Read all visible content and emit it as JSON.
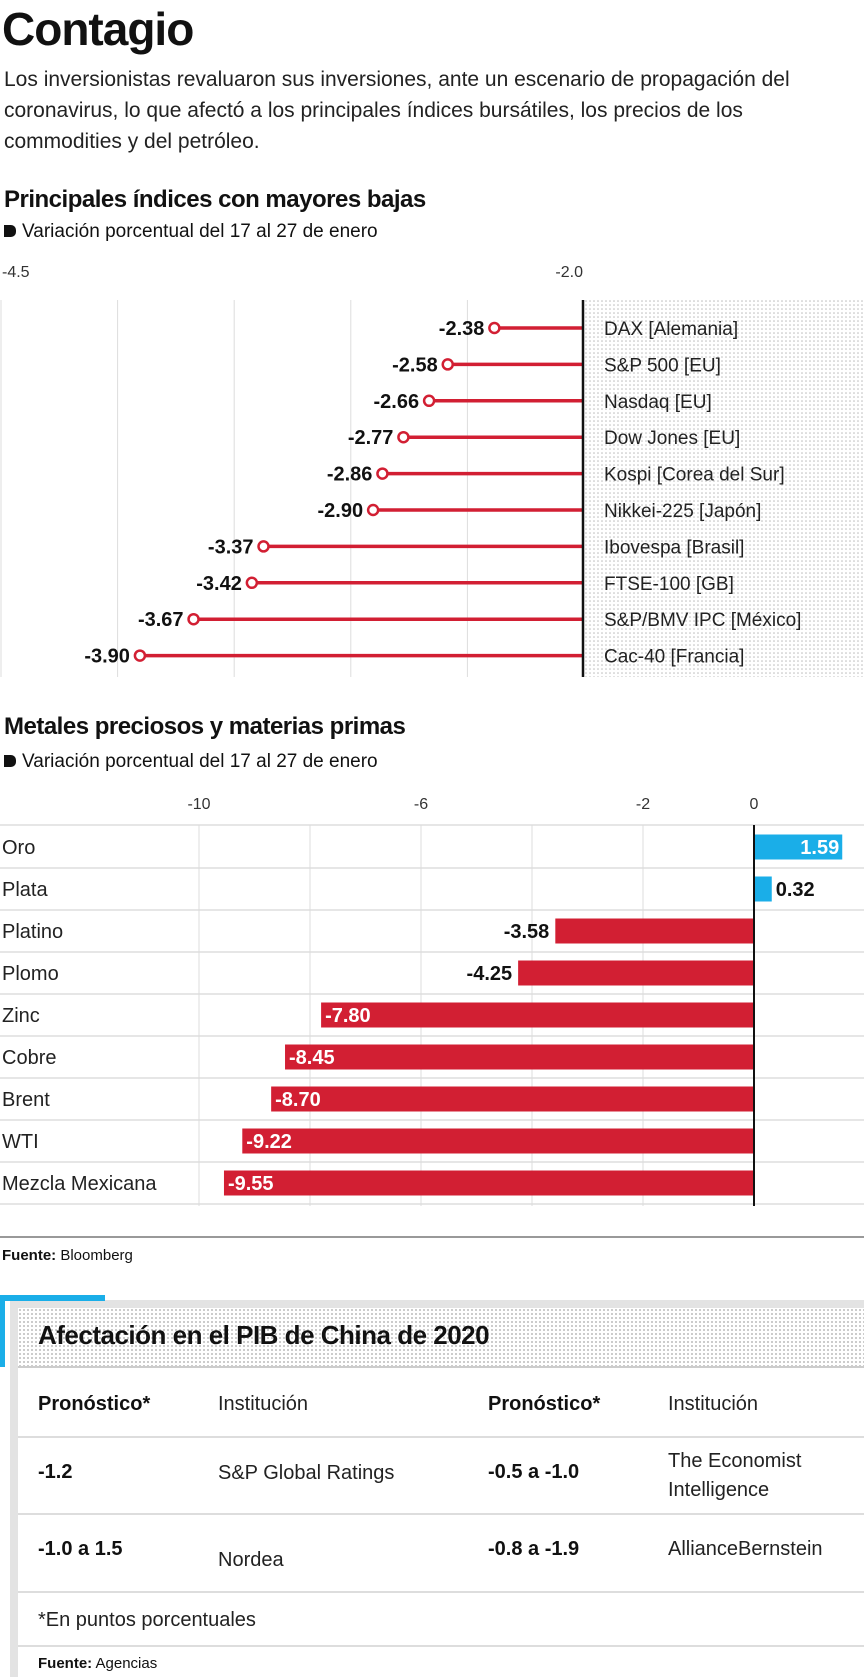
{
  "header": {
    "title": "Contagio",
    "lead": "Los inversionistas revaluaron sus inversiones, ante un escenario de propagación del coronavirus, lo que afectó a los principales índices bursátiles, los precios de los commodities y del petróleo."
  },
  "chart_data": [
    {
      "type": "lollipop",
      "title": "Principales índices con mayores bajas",
      "subtitle": "Variación porcentual del 17 al 27 de enero",
      "xlim": [
        -4.5,
        -2.0
      ],
      "xticks": [
        "-4.5",
        "-2.0"
      ],
      "grid": true,
      "color": "#d21f33",
      "categories": [
        "DAX [Alemania]",
        "S&P 500 [EU]",
        "Nasdaq [EU]",
        "Dow Jones [EU]",
        "Kospi [Corea del Sur]",
        "Nikkei-225 [Japón]",
        "Ibovespa [Brasil]",
        "FTSE-100 [GB]",
        "S&P/BMV IPC [México]",
        "Cac-40 [Francia]"
      ],
      "values": [
        -2.38,
        -2.58,
        -2.66,
        -2.77,
        -2.86,
        -2.9,
        -3.37,
        -3.42,
        -3.67,
        -3.9
      ],
      "labels": [
        "-2.38",
        "-2.58",
        "-2.66",
        "-2.77",
        "-2.86",
        "-2.90",
        "-3.37",
        "-3.42",
        "-3.67",
        "-3.90"
      ]
    },
    {
      "type": "bar",
      "orientation": "horizontal",
      "title": "Metales preciosos y materias primas",
      "subtitle": "Variación porcentual del 17 al 27 de enero",
      "xlim": [
        -10,
        2
      ],
      "xticks": [
        "-10",
        "-6",
        "-2",
        "0",
        "2"
      ],
      "xtick_values": [
        -10,
        -6,
        -2,
        0,
        2
      ],
      "grid": true,
      "positive_color": "#1aaee8",
      "negative_color": "#d21f33",
      "categories": [
        "Oro",
        "Plata",
        "Platino",
        "Plomo",
        "Zinc",
        "Cobre",
        "Brent",
        "WTI",
        "Mezcla Mexicana"
      ],
      "values": [
        1.59,
        0.32,
        -3.58,
        -4.25,
        -7.8,
        -8.45,
        -8.7,
        -9.22,
        -9.55
      ],
      "labels": [
        "1.59",
        "0.32",
        "-3.58",
        "-4.25",
        "-7.80",
        "-8.45",
        "-8.70",
        "-9.22",
        "-9.55"
      ]
    }
  ],
  "source1": {
    "label": "Fuente:",
    "value": " Bloomberg"
  },
  "table": {
    "title": "Afectación en el PIB de China de 2020",
    "headers": [
      "Pronóstico*",
      "Institución",
      "Pronóstico*",
      "Institución"
    ],
    "rows": [
      [
        "-1.2",
        "S&P Global Ratings",
        "-0.5 a -1.0",
        "The Economist Intelligence"
      ],
      [
        "-1.0 a 1.5",
        "Nordea",
        "-0.8 a -1.9",
        "AllianceBernstein"
      ]
    ],
    "footnote": "*En puntos porcentuales",
    "source": {
      "label": "Fuente:",
      "value": " Agencias"
    }
  }
}
